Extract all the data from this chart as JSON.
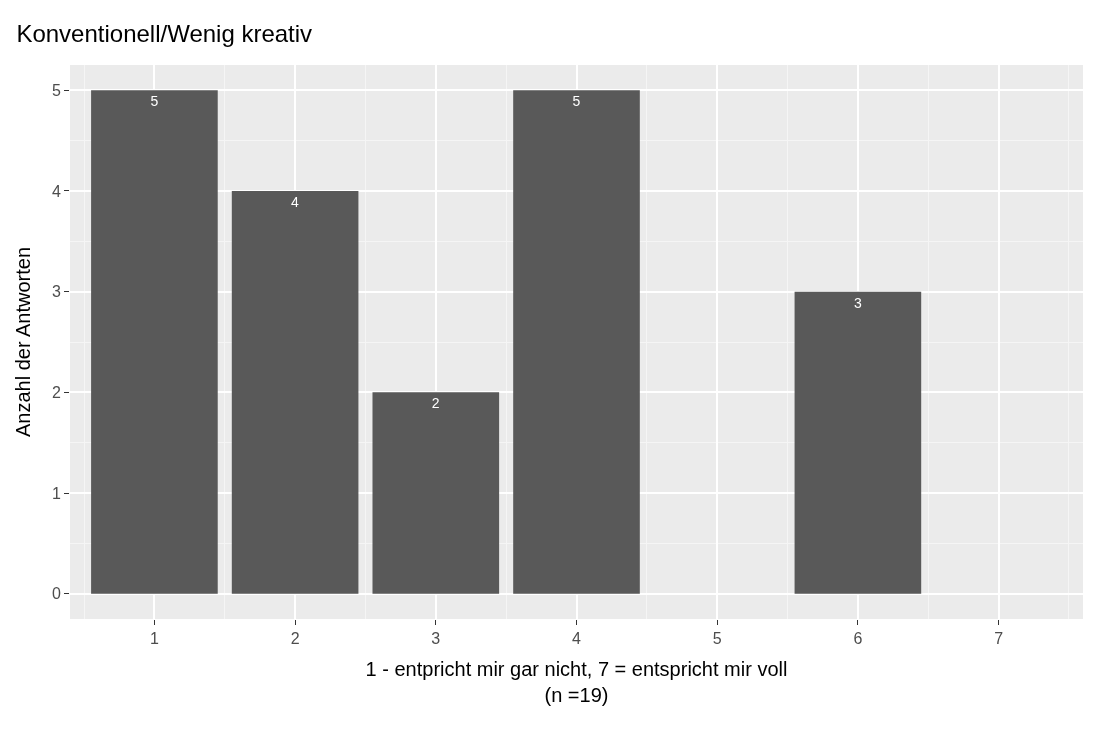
{
  "chart_data": {
    "type": "bar",
    "title": "Konventionell/Wenig kreativ",
    "xlabel": "1 - entpricht mir gar nicht, 7 = entspricht mir voll\n(n =19)",
    "ylabel": "Anzahl der Antworten",
    "x": [
      1,
      2,
      3,
      4,
      6
    ],
    "values": [
      5,
      4,
      2,
      5,
      3
    ],
    "color": "#595959",
    "xlim": [
      0.4,
      7.6
    ],
    "xticks": [
      1,
      2,
      3,
      4,
      5,
      6,
      7
    ],
    "ylim": [
      -0.25,
      5.25
    ],
    "yticks": [
      0,
      1,
      2,
      3,
      4,
      5
    ],
    "grid": true,
    "data_labels": true,
    "legend": false
  }
}
